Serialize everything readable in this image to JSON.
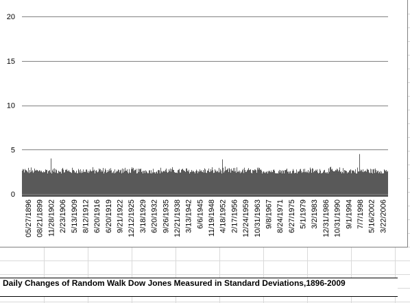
{
  "caption": "Daily Changes of Random Walk Dow Jones Measured in Standard Deviations,1896-2009",
  "colors": {
    "series_fill": "#595959",
    "gridline": "#808080",
    "axis_line": "#7f7f7f",
    "sheet_grid": "#d9d9d9",
    "text": "#000000"
  },
  "chart_data": {
    "type": "area",
    "title": "",
    "xlabel": "",
    "ylabel": "",
    "ylim": [
      0,
      20
    ],
    "yticks": [
      0,
      5,
      10,
      15,
      20
    ],
    "grid": true,
    "legend": "none",
    "x_tick_labels": [
      "05/27/1896",
      "08/21/1899",
      "11/28/1902",
      "2/23/1906",
      "5/13/1909",
      "8/12/1912",
      "6/20/1916",
      "6/20/1919",
      "9/21/1922",
      "12/12/1925",
      "3/18/1929",
      "6/20/1932",
      "9/26/1935",
      "12/21/1938",
      "3/13/1942",
      "6/6/1945",
      "11/19/1948",
      "4/18/1952",
      "2/17/1956",
      "12/24/1959",
      "10/31/1963",
      "9/8/1967",
      "8/24/1971",
      "6/27/1975",
      "5/1/1979",
      "3/2/1983",
      "12/31/1986",
      "10/31/1990",
      "9/1/1994",
      "7/7/1998",
      "5/16/2002",
      "3/22/2006"
    ],
    "series": [
      {
        "x_range": [
          "05/27/1896",
          "2009"
        ],
        "baseline_level": 2.3,
        "typical_upper_envelope": 3.0,
        "peaks": [
          {
            "near": "11/28/1902",
            "value": 4.0
          },
          {
            "near": "4/18/1952",
            "value": 3.9
          },
          {
            "near": "7/7/1998",
            "value": 4.5
          }
        ]
      }
    ]
  }
}
